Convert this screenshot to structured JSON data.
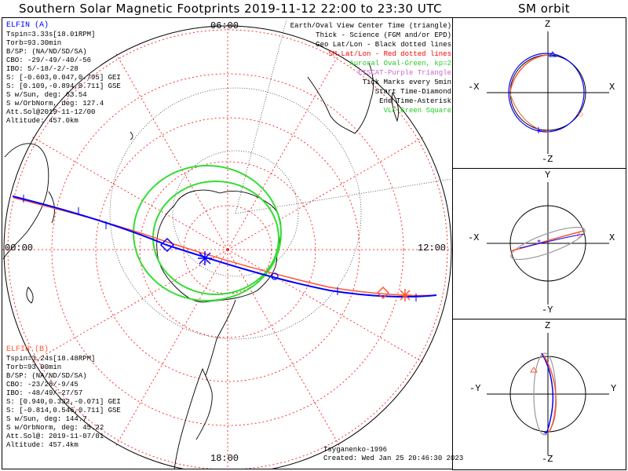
{
  "title": "Southern Solar Magnetic Footprints 2019-11-12 22:00 to 23:30 UTC",
  "orbit_title": "SM orbit",
  "map": {
    "mlt_labels": {
      "top": "06:00",
      "left": "00:00",
      "right": "12:00",
      "bottom": "18:00"
    }
  },
  "elfin_a": {
    "header": "ELFIN (A)",
    "color": "#0000ff",
    "lines": [
      "Tspin=3.33s[18.01RPM]",
      "Torb=93.30min",
      "B/SP: (NA/ND/SD/SA)",
      "CBO: -29/-49/-40/-56",
      "IBO: 5/-18/-2/-28",
      "S: [-0.603,0.047,0.795] GEI",
      "S: [0.109,-0.894,0.711] GSE",
      "S w/Sun, deg: 63.54",
      "S w/OrbNorm, deg: 127.4",
      "Att.Sol@2019-11-12/00",
      "Altitude: 457.0km"
    ]
  },
  "elfin_b": {
    "header": "ELFIN (B)",
    "color": "#ff5533",
    "lines": [
      "Tspin=3.24s[18.48RPM]",
      "Torb=93.00min",
      "B/SP: (NA/ND/SD/SA)",
      "CBO: -23/28/-9/45",
      "IBO: -48/49/-27/57",
      "S: [0.940,0.332,-0.071] GEI",
      "S: [-0.814,0.546,0.711] GSE",
      "S w/Sun, deg: 144.7",
      "S w/OrbNorm, deg: 45.22",
      "Att.Sol@: 2019-11-07/01",
      "Altitude: 457.4km"
    ]
  },
  "legend": [
    {
      "text": "Earth/Oval View Center Time (triangle)",
      "color": "#000000"
    },
    {
      "text": "Thick - Science (FGM and/or EPD)",
      "color": "#000000"
    },
    {
      "text": "Geo Lat/Lon - Black dotted lines",
      "color": "#000000"
    },
    {
      "text": "SM Lat/Lon - Red dotted lines",
      "color": "#ff0000"
    },
    {
      "text": "Auroral Oval-Green, kp=2",
      "color": "#22cc22"
    },
    {
      "text": "EISCAT-Purple Triangle",
      "color": "#cc66cc"
    },
    {
      "text": "Tick Marks every 5min",
      "color": "#000000"
    },
    {
      "text": "Start Time-Diamond",
      "color": "#000000"
    },
    {
      "text": "End Time-Asterisk",
      "color": "#000000"
    },
    {
      "text": "VLF-Green Square",
      "color": "#22cc22"
    }
  ],
  "footer": {
    "author": "Tsyganenko-1996",
    "created": "Created: Wed Jan 25 20:46:30 2023"
  },
  "orbit_panels": [
    {
      "top": "Z",
      "bottom": "-Z",
      "left": "-X",
      "right": "X"
    },
    {
      "top": "Y",
      "bottom": "-Y",
      "left": "-X",
      "right": "X"
    },
    {
      "top": "Z",
      "bottom": "-Z",
      "left": "-Y",
      "right": "Y"
    }
  ],
  "colors": {
    "elfin_a": "#0000ff",
    "elfin_b": "#ff5533",
    "sm_grid": "#ff0000",
    "auroral_oval": "#33dd33",
    "orbit_gray": "#999999"
  }
}
